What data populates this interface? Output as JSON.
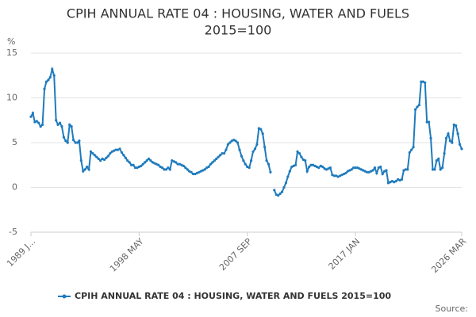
{
  "chart_data": {
    "type": "line",
    "title": [
      "CPIH ANNUAL RATE 04 : HOUSING, WATER AND FUELS",
      "2015=100"
    ],
    "y_unit": "%",
    "source": "Source:",
    "categories": [
      "1989 J...",
      null,
      null,
      null,
      null,
      null,
      null,
      null,
      null,
      null,
      null,
      null,
      null,
      null,
      null,
      null,
      null,
      null,
      null,
      null,
      null,
      null,
      null,
      null,
      null,
      null,
      null,
      null,
      null,
      null,
      null,
      null,
      null,
      null,
      null,
      null,
      null,
      null,
      null,
      null,
      null,
      null,
      null,
      null,
      null,
      null,
      null,
      null,
      null,
      null,
      null,
      null,
      null,
      null,
      null,
      null,
      "1998 MAY",
      null,
      null,
      null,
      null,
      null,
      null,
      null,
      null,
      null,
      null,
      null,
      null,
      null,
      null,
      null,
      null,
      null,
      null,
      null,
      null,
      null,
      null,
      null,
      null,
      null,
      null,
      null,
      null,
      null,
      null,
      null,
      null,
      null,
      null,
      null,
      null,
      null,
      null,
      null,
      null,
      null,
      null,
      null,
      null,
      null,
      null,
      null,
      null,
      null,
      null,
      null,
      null,
      null,
      null,
      null,
      "2007 SEP",
      null,
      null,
      null,
      null,
      null,
      null,
      null,
      null,
      null,
      null,
      null,
      null,
      null,
      null,
      null,
      null,
      null,
      null,
      null,
      null,
      null,
      null,
      null,
      null,
      null,
      null,
      null,
      null,
      null,
      null,
      null,
      null,
      null,
      null,
      null,
      null,
      null,
      null,
      null,
      null,
      null,
      null,
      null,
      null,
      null,
      null,
      null,
      null,
      null,
      null,
      null,
      null,
      null,
      null,
      null,
      "2017 JAN",
      null,
      null,
      null,
      null,
      null,
      null,
      null,
      null,
      null,
      null,
      null,
      null,
      null,
      null,
      null,
      null,
      null,
      null,
      null,
      null,
      null,
      null,
      null,
      null,
      null,
      null,
      null,
      null,
      null,
      null,
      null,
      null,
      null,
      null,
      null,
      null,
      null,
      null,
      null,
      null,
      null,
      null,
      null,
      null,
      null,
      null,
      null,
      null,
      null,
      null,
      null,
      null,
      null,
      null,
      "2026 MAR"
    ],
    "series": [
      {
        "name": "CPIH ANNUAL RATE 04 : HOUSING, WATER AND FUELS 2015=100",
        "color": "#1f7bbd",
        "values": [
          7.9,
          8.3,
          7.3,
          7.4,
          7.2,
          6.8,
          7.0,
          11.0,
          11.8,
          12.0,
          12.3,
          13.2,
          12.5,
          7.5,
          7.0,
          7.2,
          6.8,
          5.6,
          5.2,
          5.0,
          7.0,
          6.8,
          5.3,
          5.0,
          5.0,
          5.2,
          3.0,
          1.8,
          2.0,
          2.3,
          2.0,
          4.0,
          3.8,
          3.6,
          3.4,
          3.2,
          3.0,
          3.2,
          3.1,
          3.3,
          3.5,
          3.8,
          4.0,
          4.1,
          4.2,
          4.2,
          4.3,
          3.9,
          3.6,
          3.3,
          3.0,
          2.8,
          2.5,
          2.5,
          2.2,
          2.2,
          2.3,
          2.4,
          2.6,
          2.8,
          3.0,
          3.2,
          3.0,
          2.8,
          2.7,
          2.6,
          2.5,
          2.3,
          2.2,
          2.0,
          2.0,
          2.2,
          2.0,
          3.0,
          2.9,
          2.8,
          2.6,
          2.6,
          2.5,
          2.4,
          2.2,
          2.0,
          1.8,
          1.7,
          1.5,
          1.5,
          1.6,
          1.7,
          1.8,
          1.9,
          2.0,
          2.2,
          2.3,
          2.6,
          2.8,
          3.0,
          3.2,
          3.4,
          3.6,
          3.8,
          3.8,
          4.2,
          4.8,
          5.0,
          5.2,
          5.3,
          5.2,
          5.0,
          4.2,
          3.5,
          3.0,
          2.6,
          2.3,
          2.2,
          3.0,
          4.0,
          4.3,
          4.8,
          6.6,
          6.5,
          6.0,
          4.5,
          3.0,
          2.6,
          1.7,
          null,
          -0.3,
          -0.8,
          -0.9,
          -0.7,
          -0.5,
          0.0,
          0.5,
          1.2,
          1.8,
          2.3,
          2.4,
          2.5,
          4.0,
          3.8,
          3.4,
          3.1,
          3.0,
          1.8,
          2.3,
          2.5,
          2.5,
          2.4,
          2.3,
          2.2,
          2.4,
          2.3,
          2.1,
          2.0,
          2.1,
          2.2,
          1.4,
          1.3,
          1.3,
          1.2,
          1.3,
          1.4,
          1.5,
          1.6,
          1.8,
          1.9,
          2.0,
          2.2,
          2.2,
          2.2,
          2.1,
          2.0,
          1.9,
          1.8,
          1.7,
          1.7,
          1.8,
          1.9,
          2.2,
          1.6,
          2.2,
          2.3,
          1.5,
          1.8,
          1.9,
          0.5,
          0.6,
          0.7,
          0.6,
          0.7,
          0.9,
          0.8,
          0.9,
          1.9,
          2.0,
          2.0,
          3.9,
          4.2,
          4.5,
          8.7,
          9.0,
          9.2,
          11.8,
          11.8,
          11.7,
          7.3,
          7.3,
          5.5,
          2.0,
          2.0,
          3.0,
          3.2,
          2.0,
          2.2,
          3.8,
          5.5,
          6.0,
          5.2,
          5.0,
          7.0,
          6.9,
          6.0,
          4.8,
          4.3
        ]
      }
    ],
    "ylim": [
      -5,
      15
    ],
    "yticks": [
      15,
      10,
      5,
      0,
      -5
    ],
    "grid": true
  }
}
